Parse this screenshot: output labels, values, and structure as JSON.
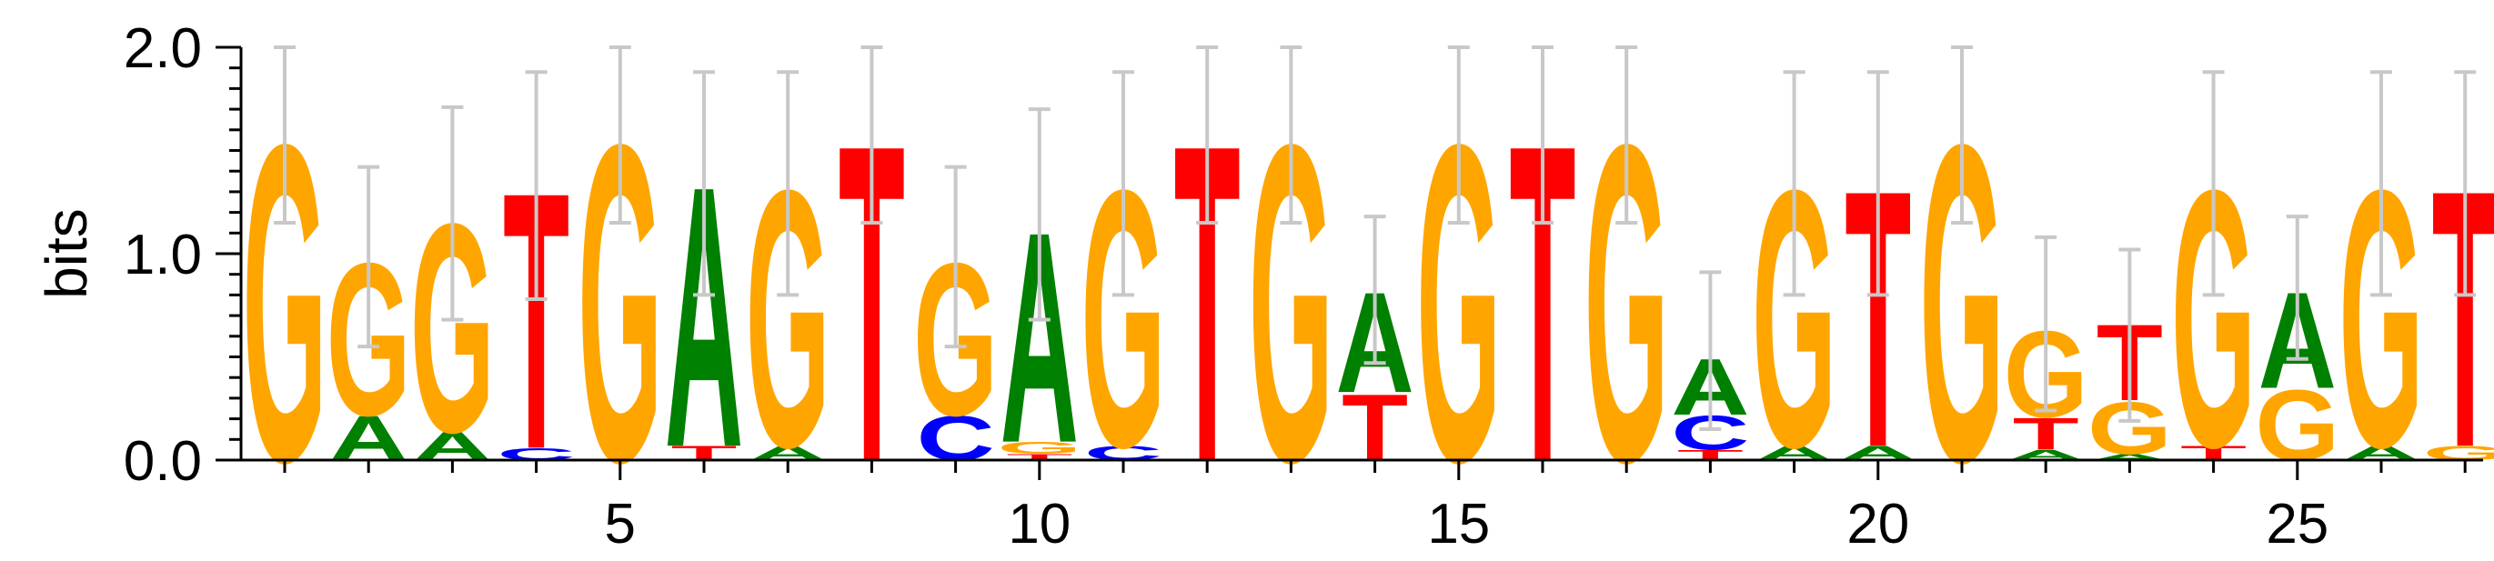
{
  "chart_data": {
    "type": "sequence-logo",
    "ylabel": "bits",
    "ylim": [
      0,
      2
    ],
    "y_ticks": [
      "0.0",
      "1.0",
      "2.0"
    ],
    "x_ticks": [
      5,
      10,
      15,
      20,
      25
    ],
    "positions": [
      {
        "pos": 1,
        "letters": [
          {
            "b": "G",
            "h": 1.58
          }
        ],
        "err": [
          1.15,
          2.0
        ]
      },
      {
        "pos": 2,
        "letters": [
          {
            "b": "A",
            "h": 0.22
          },
          {
            "b": "G",
            "h": 0.76
          }
        ],
        "err": [
          0.55,
          1.42
        ]
      },
      {
        "pos": 3,
        "letters": [
          {
            "b": "A",
            "h": 0.14
          },
          {
            "b": "G",
            "h": 1.04
          }
        ],
        "err": [
          0.68,
          1.71
        ]
      },
      {
        "pos": 4,
        "letters": [
          {
            "b": "C",
            "h": 0.06
          },
          {
            "b": "T",
            "h": 1.28
          }
        ],
        "err": [
          0.78,
          1.88
        ]
      },
      {
        "pos": 5,
        "letters": [
          {
            "b": "G",
            "h": 1.58
          }
        ],
        "err": [
          1.15,
          2.0
        ]
      },
      {
        "pos": 6,
        "letters": [
          {
            "b": "T",
            "h": 0.07
          },
          {
            "b": "A",
            "h": 1.3
          }
        ],
        "err": [
          0.8,
          1.88
        ]
      },
      {
        "pos": 7,
        "letters": [
          {
            "b": "A",
            "h": 0.07
          },
          {
            "b": "G",
            "h": 1.28
          }
        ],
        "err": [
          0.8,
          1.88
        ]
      },
      {
        "pos": 8,
        "letters": [
          {
            "b": "T",
            "h": 1.58
          }
        ],
        "err": [
          1.15,
          2.0
        ]
      },
      {
        "pos": 9,
        "letters": [
          {
            "b": "C",
            "h": 0.22
          },
          {
            "b": "G",
            "h": 0.76
          }
        ],
        "err": [
          0.55,
          1.42
        ]
      },
      {
        "pos": 10,
        "letters": [
          {
            "b": "T",
            "h": 0.03
          },
          {
            "b": "G",
            "h": 0.06
          },
          {
            "b": "A",
            "h": 1.05
          }
        ],
        "err": [
          0.68,
          1.7
        ]
      },
      {
        "pos": 11,
        "letters": [
          {
            "b": "C",
            "h": 0.07
          },
          {
            "b": "G",
            "h": 1.28
          }
        ],
        "err": [
          0.8,
          1.88
        ]
      },
      {
        "pos": 12,
        "letters": [
          {
            "b": "T",
            "h": 1.58
          }
        ],
        "err": [
          1.15,
          2.0
        ]
      },
      {
        "pos": 13,
        "letters": [
          {
            "b": "G",
            "h": 1.58
          }
        ],
        "err": [
          1.15,
          2.0
        ]
      },
      {
        "pos": 14,
        "letters": [
          {
            "b": "T",
            "h": 0.33
          },
          {
            "b": "A",
            "h": 0.5
          }
        ],
        "err": [
          0.47,
          1.18
        ]
      },
      {
        "pos": 15,
        "letters": [
          {
            "b": "G",
            "h": 1.58
          }
        ],
        "err": [
          1.15,
          2.0
        ]
      },
      {
        "pos": 16,
        "letters": [
          {
            "b": "T",
            "h": 1.58
          }
        ],
        "err": [
          1.15,
          2.0
        ]
      },
      {
        "pos": 17,
        "letters": [
          {
            "b": "G",
            "h": 1.58
          }
        ],
        "err": [
          1.15,
          2.0
        ]
      },
      {
        "pos": 18,
        "letters": [
          {
            "b": "T",
            "h": 0.05
          },
          {
            "b": "C",
            "h": 0.17
          },
          {
            "b": "A",
            "h": 0.28
          }
        ],
        "err": [
          0.15,
          0.91
        ]
      },
      {
        "pos": 19,
        "letters": [
          {
            "b": "A",
            "h": 0.07
          },
          {
            "b": "G",
            "h": 1.28
          }
        ],
        "err": [
          0.8,
          1.88
        ]
      },
      {
        "pos": 20,
        "letters": [
          {
            "b": "A",
            "h": 0.07
          },
          {
            "b": "T",
            "h": 1.28
          }
        ],
        "err": [
          0.8,
          1.88
        ]
      },
      {
        "pos": 21,
        "letters": [
          {
            "b": "G",
            "h": 1.58
          }
        ],
        "err": [
          1.15,
          2.0
        ]
      },
      {
        "pos": 22,
        "letters": [
          {
            "b": "A",
            "h": 0.05
          },
          {
            "b": "T",
            "h": 0.16
          },
          {
            "b": "G",
            "h": 0.43
          }
        ],
        "err": [
          0.24,
          1.08
        ]
      },
      {
        "pos": 23,
        "letters": [
          {
            "b": "A",
            "h": 0.03
          },
          {
            "b": "G",
            "h": 0.26
          },
          {
            "b": "T",
            "h": 0.38
          }
        ],
        "err": [
          0.19,
          1.02
        ]
      },
      {
        "pos": 24,
        "letters": [
          {
            "b": "T",
            "h": 0.07
          },
          {
            "b": "G",
            "h": 1.28
          }
        ],
        "err": [
          0.8,
          1.88
        ]
      },
      {
        "pos": 25,
        "letters": [
          {
            "b": "G",
            "h": 0.35
          },
          {
            "b": "A",
            "h": 0.48
          }
        ],
        "err": [
          0.49,
          1.18
        ]
      },
      {
        "pos": 26,
        "letters": [
          {
            "b": "A",
            "h": 0.07
          },
          {
            "b": "G",
            "h": 1.28
          }
        ],
        "err": [
          0.8,
          1.88
        ]
      },
      {
        "pos": 27,
        "letters": [
          {
            "b": "G",
            "h": 0.07
          },
          {
            "b": "T",
            "h": 1.28
          }
        ],
        "err": [
          0.8,
          1.88
        ]
      }
    ],
    "colors": {
      "A": "#008000",
      "C": "#0000ff",
      "G": "#ffa500",
      "T": "#ff0000",
      "error_bar": "#c8c8c8",
      "axis": "#000000"
    }
  }
}
